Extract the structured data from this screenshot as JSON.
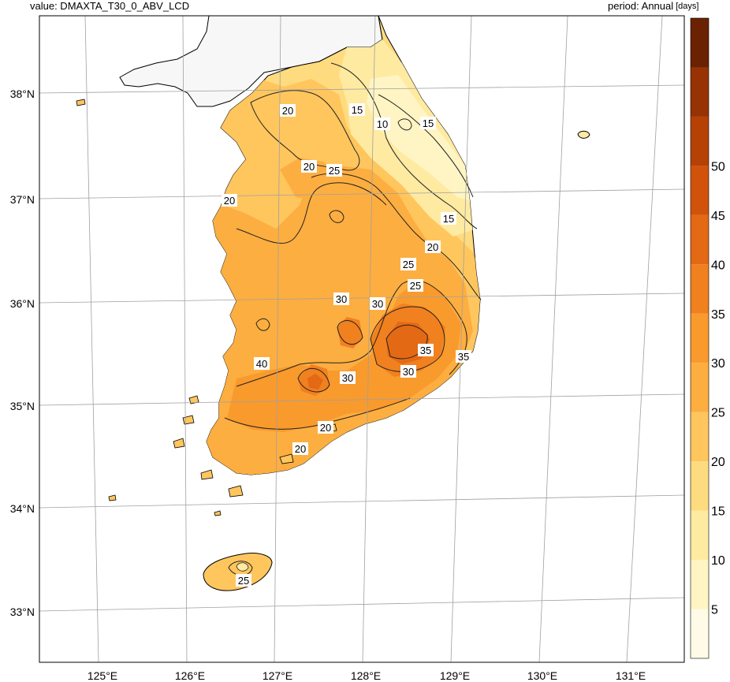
{
  "header": {
    "value_label": "value: DMAXTA_T30_0_ABV_LCD",
    "period_label": "period: Annual",
    "units": "[days]"
  },
  "axes": {
    "lat_labels": [
      "38°N",
      "37°N",
      "36°N",
      "35°N",
      "34°N",
      "33°N"
    ],
    "lon_labels": [
      "125°E",
      "126°E",
      "127°E",
      "128°E",
      "129°E",
      "130°E",
      "131°E"
    ]
  },
  "colorbar": {
    "labels": [
      "5",
      "10",
      "15",
      "20",
      "25",
      "30",
      "35",
      "40",
      "45",
      "50"
    ],
    "colors": [
      "#fffbe6",
      "#fff5c4",
      "#ffeaa2",
      "#ffdb80",
      "#ffc65e",
      "#fdae40",
      "#f99a2d",
      "#f1801f",
      "#e46914",
      "#d1530b",
      "#b64106",
      "#963204",
      "#6b2202"
    ]
  },
  "contour_labels": [
    "20",
    "15",
    "10",
    "15",
    "20",
    "25",
    "15",
    "20",
    "25",
    "25",
    "30",
    "30",
    "35",
    "40",
    "30",
    "30",
    "35",
    "20",
    "20",
    "25",
    "20"
  ],
  "map_colors": {
    "land_outside": "#f7f7f7",
    "border": "#000000",
    "grid": "#a0a0a0",
    "sea": "#ffffff"
  }
}
